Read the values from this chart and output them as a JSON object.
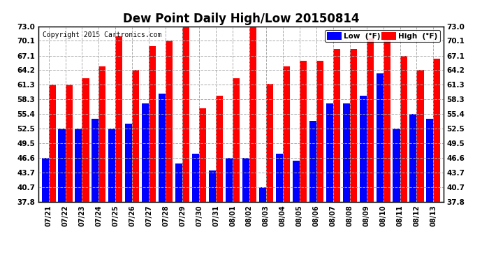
{
  "title": "Dew Point Daily High/Low 20150814",
  "copyright": "Copyright 2015 Cartronics.com",
  "background_color": "#ffffff",
  "plot_bg_color": "#ffffff",
  "grid_color": "#aaaaaa",
  "dates": [
    "07/21",
    "07/22",
    "07/23",
    "07/24",
    "07/25",
    "07/26",
    "07/27",
    "07/28",
    "07/29",
    "07/30",
    "07/31",
    "08/01",
    "08/02",
    "08/03",
    "08/04",
    "08/05",
    "08/06",
    "08/07",
    "08/08",
    "08/09",
    "08/10",
    "08/11",
    "08/12",
    "08/13"
  ],
  "low_values": [
    46.6,
    52.5,
    52.5,
    54.5,
    52.5,
    53.5,
    57.5,
    59.5,
    45.5,
    47.5,
    44.0,
    46.6,
    46.6,
    40.7,
    47.5,
    46.0,
    54.0,
    57.5,
    57.5,
    59.0,
    63.5,
    52.5,
    55.4,
    54.5
  ],
  "high_values": [
    61.3,
    61.3,
    62.5,
    65.0,
    71.0,
    64.2,
    69.0,
    70.1,
    73.0,
    56.5,
    59.0,
    62.5,
    73.0,
    61.5,
    65.0,
    66.0,
    66.0,
    68.5,
    68.5,
    70.5,
    71.0,
    67.1,
    64.2,
    66.5
  ],
  "low_color": "#0000ff",
  "high_color": "#ff0000",
  "ymin": 37.8,
  "ymax": 73.0,
  "yticks": [
    37.8,
    40.7,
    43.7,
    46.6,
    49.5,
    52.5,
    55.4,
    58.3,
    61.3,
    64.2,
    67.1,
    70.1,
    73.0
  ],
  "title_fontsize": 12,
  "copyright_fontsize": 7,
  "legend_low_label": "Low  (°F)",
  "legend_high_label": "High  (°F)"
}
